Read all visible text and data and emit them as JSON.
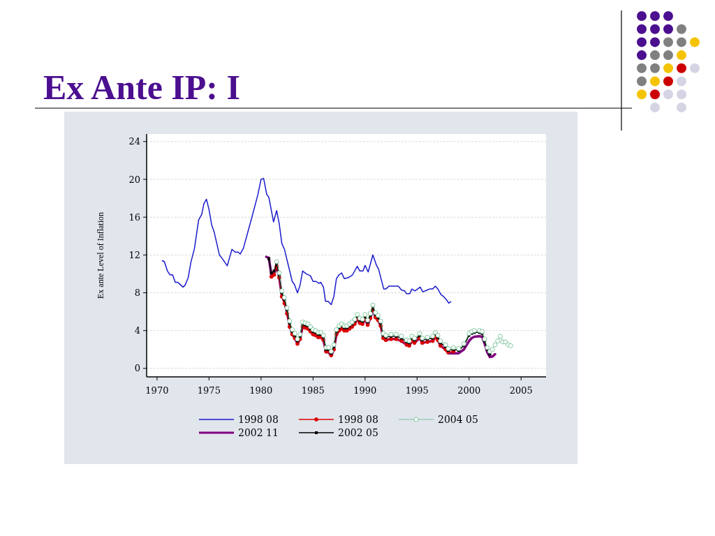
{
  "chart_data": {
    "type": "line",
    "title": "Ex Ante IP: I",
    "ylabel": "Ex ante Level of Inflation",
    "xlim": [
      1969,
      2007.4
    ],
    "xticks": [
      1970,
      1975,
      1980,
      1985,
      1990,
      1995,
      2000,
      2005
    ],
    "ylim": [
      -0.9,
      24.8
    ],
    "yticks": [
      0,
      4,
      8,
      12,
      16,
      20,
      24
    ],
    "grid": "y",
    "legend": "bottom",
    "series": [
      {
        "name": "1998 08",
        "color": "#1a1acc",
        "x": [
          1970.5,
          1970.7,
          1971.0,
          1971.25,
          1971.5,
          1971.75,
          1972.0,
          1972.5,
          1972.7,
          1973.0,
          1973.25,
          1973.6,
          1974.0,
          1974.3,
          1974.5,
          1974.75,
          1975.0,
          1975.25,
          1975.5,
          1976.0,
          1976.35,
          1976.75,
          1977.2,
          1977.5,
          1977.8,
          1978.0,
          1978.3,
          1979.1,
          1979.7,
          1980.0,
          1980.25,
          1980.55,
          1980.75,
          1981.2,
          1981.5,
          1981.75,
          1982.0,
          1982.25,
          1982.8,
          1983.0,
          1983.2,
          1983.5,
          1983.75,
          1984.0,
          1984.35,
          1984.75,
          1985.0,
          1985.3,
          1985.55,
          1985.75,
          1986.0,
          1986.2,
          1986.45,
          1986.75,
          1987.0,
          1987.25,
          1987.5,
          1987.75,
          1988.0,
          1988.4,
          1988.8,
          1989.25,
          1989.5,
          1989.8,
          1990.0,
          1990.3,
          1990.75,
          1991.1,
          1991.3,
          1991.8,
          1992.0,
          1992.3,
          1992.7,
          1993.2,
          1993.5,
          1993.8,
          1994.0,
          1994.3,
          1994.5,
          1994.8,
          1995.3,
          1995.55,
          1995.8,
          1996.2,
          1996.5,
          1996.75,
          1997.0,
          1997.3,
          1997.55,
          1997.8,
          1998.05,
          1998.25
        ],
        "values": [
          11.4,
          11.3,
          10.3,
          9.9,
          9.9,
          9.1,
          9.1,
          8.6,
          8.8,
          9.6,
          11.2,
          12.7,
          15.7,
          16.3,
          17.4,
          17.9,
          16.8,
          15.2,
          14.4,
          12.0,
          11.5,
          10.85,
          12.6,
          12.3,
          12.3,
          12.1,
          12.7,
          15.9,
          18.4,
          20.0,
          20.1,
          18.4,
          18.1,
          15.5,
          16.7,
          15.3,
          13.2,
          12.6,
          10.1,
          9.2,
          8.9,
          8.0,
          8.8,
          10.3,
          10.0,
          9.8,
          9.2,
          9.2,
          9.0,
          9.1,
          8.6,
          7.1,
          7.1,
          6.75,
          7.6,
          9.5,
          9.9,
          10.1,
          9.5,
          9.6,
          9.9,
          10.8,
          10.3,
          10.3,
          10.9,
          10.2,
          12.0,
          10.9,
          10.5,
          8.4,
          8.4,
          8.7,
          8.7,
          8.7,
          8.3,
          8.2,
          7.9,
          7.9,
          8.4,
          8.2,
          8.6,
          8.1,
          8.2,
          8.4,
          8.4,
          8.7,
          8.4,
          7.8,
          7.6,
          7.3,
          6.9,
          7.05
        ]
      },
      {
        "name": "1998 08",
        "color": "#dd0000",
        "marker": "circle",
        "x": [
          1981.0,
          1981.25,
          1981.5,
          1981.75,
          1982.0,
          1982.25,
          1982.5,
          1982.75,
          1983.0,
          1983.25,
          1983.5,
          1983.75,
          1984.0,
          1984.25,
          1984.5,
          1984.75,
          1985.0,
          1985.25,
          1985.5,
          1985.75,
          1986.0,
          1986.25,
          1986.5,
          1986.75,
          1987.0,
          1987.25,
          1987.5,
          1987.75,
          1988.0,
          1988.25,
          1988.5,
          1988.75,
          1989.0,
          1989.25,
          1989.5,
          1989.75,
          1990.0,
          1990.25,
          1990.5,
          1990.75,
          1991.0,
          1991.25,
          1991.5,
          1991.75,
          1992.0,
          1992.5,
          1993.0,
          1993.5,
          1994.0,
          1994.25,
          1994.5,
          1994.75,
          1995.25,
          1995.5,
          1996.0,
          1996.5,
          1996.75,
          1997.0,
          1997.25,
          1997.75,
          1998.0,
          1998.5
        ],
        "values": [
          9.7,
          9.9,
          10.8,
          9.6,
          7.6,
          6.9,
          5.8,
          4.4,
          3.6,
          3.2,
          2.6,
          3.1,
          4.4,
          4.3,
          4.2,
          3.9,
          3.6,
          3.5,
          3.3,
          3.3,
          3.0,
          1.8,
          1.8,
          1.4,
          2.0,
          3.6,
          4.0,
          4.2,
          4.0,
          4.0,
          4.2,
          4.4,
          4.7,
          5.2,
          4.8,
          4.7,
          5.2,
          4.6,
          5.3,
          6.2,
          5.4,
          5.1,
          4.5,
          3.2,
          3.0,
          3.1,
          3.1,
          2.9,
          2.5,
          2.4,
          2.9,
          2.7,
          3.2,
          2.7,
          2.8,
          2.9,
          3.3,
          3.0,
          2.4,
          2.0,
          1.7,
          1.8
        ]
      },
      {
        "name": "2004 05",
        "color": "#66bb88",
        "marker": "circle",
        "x": [
          1981.5,
          1981.75,
          1982.0,
          1982.25,
          1982.5,
          1982.75,
          1983.0,
          1983.25,
          1983.5,
          1983.75,
          1984.0,
          1984.25,
          1984.5,
          1984.75,
          1985.0,
          1985.25,
          1985.5,
          1985.75,
          1986.0,
          1986.25,
          1986.5,
          1986.75,
          1987.0,
          1987.25,
          1987.5,
          1987.75,
          1988.0,
          1988.25,
          1988.5,
          1988.75,
          1989.0,
          1989.25,
          1989.5,
          1989.75,
          1990.0,
          1990.25,
          1990.5,
          1990.75,
          1991.0,
          1991.25,
          1991.5,
          1991.75,
          1992.0,
          1992.5,
          1993.0,
          1993.5,
          1994.0,
          1994.25,
          1994.5,
          1994.75,
          1995.25,
          1995.5,
          1996.0,
          1996.5,
          1996.75,
          1997.0,
          1997.25,
          1997.75,
          1998.0,
          1998.5,
          1999.0,
          1999.5,
          2000.0,
          2000.25,
          2000.5,
          2001.0,
          2001.25,
          2001.5,
          2001.75,
          2002.0,
          2002.25,
          2002.5,
          2002.75,
          2003.0,
          2003.25,
          2003.5,
          2003.75,
          2004.0
        ],
        "values": [
          11.3,
          10.1,
          8.2,
          7.5,
          6.4,
          5.0,
          4.1,
          3.7,
          3.1,
          3.6,
          4.9,
          4.8,
          4.7,
          4.4,
          4.1,
          4.0,
          3.8,
          3.8,
          3.5,
          2.2,
          2.2,
          1.8,
          2.5,
          4.1,
          4.5,
          4.7,
          4.5,
          4.5,
          4.7,
          4.9,
          5.2,
          5.7,
          5.3,
          5.2,
          5.7,
          5.1,
          5.8,
          6.7,
          5.9,
          5.6,
          5.0,
          3.7,
          3.5,
          3.6,
          3.6,
          3.4,
          3.0,
          2.9,
          3.4,
          3.2,
          3.7,
          3.2,
          3.3,
          3.4,
          3.8,
          3.5,
          2.9,
          2.5,
          2.1,
          2.2,
          2.1,
          2.6,
          3.7,
          3.9,
          4.0,
          4.0,
          3.9,
          3.1,
          2.2,
          1.8,
          2.0,
          2.5,
          2.9,
          3.4,
          2.8,
          2.8,
          2.5,
          2.4
        ]
      },
      {
        "name": "2002 11",
        "color": "#800080",
        "x": [
          1980.5,
          1980.75,
          1981.0,
          1981.25,
          1981.5,
          1981.75,
          1982.0,
          1982.25,
          1982.5,
          1982.75,
          1983.0,
          1983.25,
          1983.5,
          1983.75,
          1984.0,
          1984.25,
          1984.5,
          1984.75,
          1985.0,
          1985.25,
          1985.5,
          1985.75,
          1986.0,
          1986.25,
          1986.5,
          1986.75,
          1987.0,
          1987.25,
          1987.5,
          1987.75,
          1988.0,
          1988.25,
          1988.5,
          1988.75,
          1989.0,
          1989.25,
          1989.5,
          1989.75,
          1990.0,
          1990.25,
          1990.5,
          1990.75,
          1991.0,
          1991.25,
          1991.5,
          1991.75,
          1992.0,
          1992.5,
          1993.0,
          1993.5,
          1994.0,
          1994.25,
          1994.5,
          1994.75,
          1995.25,
          1995.5,
          1996.0,
          1996.5,
          1996.75,
          1997.0,
          1997.25,
          1997.75,
          1998.0,
          1998.5,
          1999.0,
          1999.5,
          2000.0,
          2000.25,
          2000.5,
          2001.0,
          2001.25,
          2001.5,
          2001.75,
          2002.0,
          2002.25,
          2002.5
        ],
        "values": [
          11.8,
          11.7,
          9.8,
          10.0,
          10.8,
          9.6,
          7.7,
          7.0,
          5.9,
          4.5,
          3.6,
          3.2,
          2.6,
          3.1,
          4.4,
          4.3,
          4.2,
          3.9,
          3.6,
          3.5,
          3.3,
          3.3,
          3.0,
          1.7,
          1.7,
          1.3,
          2.0,
          3.6,
          4.0,
          4.2,
          4.0,
          4.0,
          4.2,
          4.4,
          4.7,
          5.2,
          4.8,
          4.7,
          5.2,
          4.6,
          5.3,
          6.2,
          5.4,
          5.1,
          4.5,
          3.2,
          3.0,
          3.1,
          3.1,
          2.9,
          2.5,
          2.4,
          2.9,
          2.7,
          3.2,
          2.7,
          2.8,
          2.9,
          3.3,
          3.0,
          2.4,
          2.0,
          1.6,
          1.6,
          1.6,
          2.0,
          2.9,
          3.2,
          3.35,
          3.4,
          3.35,
          2.6,
          1.7,
          1.2,
          1.25,
          1.5
        ]
      },
      {
        "name": "2002 05",
        "color": "#000000",
        "marker": "square",
        "x": [
          1980.75,
          1981.0,
          1981.25,
          1981.5,
          1981.75,
          1982.0,
          1982.25,
          1982.5,
          1982.75,
          1983.0,
          1983.25,
          1983.5,
          1983.75,
          1984.0,
          1984.25,
          1984.5,
          1984.75,
          1985.0,
          1985.25,
          1985.5,
          1985.75,
          1986.0,
          1986.25,
          1986.5,
          1986.75,
          1987.0,
          1987.25,
          1987.5,
          1987.75,
          1988.0,
          1988.25,
          1988.5,
          1988.75,
          1989.0,
          1989.25,
          1989.5,
          1989.75,
          1990.0,
          1990.25,
          1990.5,
          1990.75,
          1991.0,
          1991.25,
          1991.5,
          1991.75,
          1992.0,
          1992.5,
          1993.0,
          1993.5,
          1994.0,
          1994.25,
          1994.5,
          1994.75,
          1995.25,
          1995.5,
          1996.0,
          1996.5,
          1996.75,
          1997.0,
          1997.25,
          1997.75,
          1998.0,
          1998.5,
          1999.0,
          1999.5,
          2000.0,
          2000.25,
          2000.5,
          2001.0,
          2001.25,
          2001.5,
          2001.75,
          2002.0
        ],
        "values": [
          11.6,
          10.1,
          10.3,
          11.1,
          9.9,
          8.0,
          7.3,
          6.2,
          4.8,
          3.9,
          3.5,
          2.9,
          3.4,
          4.7,
          4.6,
          4.5,
          4.2,
          3.9,
          3.8,
          3.6,
          3.6,
          3.3,
          2.0,
          2.0,
          1.6,
          2.3,
          3.9,
          4.3,
          4.5,
          4.3,
          4.3,
          4.5,
          4.7,
          5.0,
          5.5,
          5.1,
          5.0,
          5.5,
          4.9,
          5.6,
          6.5,
          5.7,
          5.4,
          4.8,
          3.5,
          3.3,
          3.4,
          3.4,
          3.2,
          2.8,
          2.7,
          3.2,
          3.0,
          3.5,
          3.0,
          3.1,
          3.2,
          3.6,
          3.3,
          2.7,
          2.3,
          1.9,
          2.0,
          1.9,
          2.4,
          3.5,
          3.7,
          3.8,
          3.8,
          3.7,
          2.9,
          2.0,
          1.5
        ]
      }
    ]
  }
}
